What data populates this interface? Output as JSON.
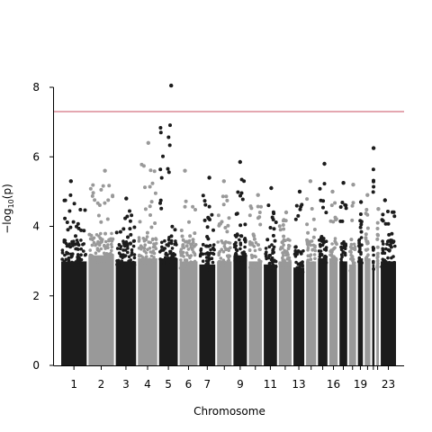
{
  "chart_data": {
    "type": "scatter",
    "subtype": "manhattan",
    "xlabel": "Chromosome",
    "ylabel": "−log",
    "ylabel_sub": "10",
    "ylabel_arg": "(p)",
    "ylim": [
      0,
      8.2
    ],
    "yticks": [
      0,
      2,
      4,
      6,
      8
    ],
    "threshold": {
      "value": 7.3,
      "color": "#c94f62"
    },
    "colors": {
      "dark": "#1c1c1c",
      "light": "#999999"
    },
    "grid": false,
    "chromosomes": [
      {
        "id": 1,
        "label": "1",
        "width": 8.0,
        "base_max": 3.4,
        "peak": 5.3
      },
      {
        "id": 2,
        "label": "2",
        "width": 8.0,
        "base_max": 3.6,
        "peak": 5.6
      },
      {
        "id": 3,
        "label": "3",
        "width": 6.5,
        "base_max": 3.4,
        "peak": 4.8
      },
      {
        "id": 4,
        "label": "4",
        "width": 6.2,
        "base_max": 3.5,
        "peak": 6.4
      },
      {
        "id": 5,
        "label": "5",
        "width": 6.0,
        "base_max": 3.5,
        "peak": 8.05
      },
      {
        "id": 6,
        "label": "6",
        "width": 5.8,
        "base_max": 3.4,
        "peak": 5.6
      },
      {
        "id": 7,
        "label": "7",
        "width": 5.2,
        "base_max": 3.3,
        "peak": 5.4
      },
      {
        "id": 8,
        "label": "",
        "width": 4.8,
        "base_max": 3.4,
        "peak": 5.3
      },
      {
        "id": 9,
        "label": "9",
        "width": 4.5,
        "base_max": 3.6,
        "peak": 5.85
      },
      {
        "id": 10,
        "label": "",
        "width": 4.4,
        "base_max": 3.4,
        "peak": 4.9
      },
      {
        "id": 11,
        "label": "11",
        "width": 4.4,
        "base_max": 3.3,
        "peak": 5.1
      },
      {
        "id": 12,
        "label": "",
        "width": 4.3,
        "base_max": 3.4,
        "peak": 4.4
      },
      {
        "id": 13,
        "label": "13",
        "width": 3.7,
        "base_max": 3.2,
        "peak": 5.0
      },
      {
        "id": 14,
        "label": "",
        "width": 3.5,
        "base_max": 3.4,
        "peak": 5.3
      },
      {
        "id": 15,
        "label": "",
        "width": 3.3,
        "base_max": 3.5,
        "peak": 5.8
      },
      {
        "id": 16,
        "label": "16",
        "width": 3.0,
        "base_max": 3.5,
        "peak": 5.0
      },
      {
        "id": 17,
        "label": "",
        "width": 2.8,
        "base_max": 3.4,
        "peak": 5.25
      },
      {
        "id": 18,
        "label": "",
        "width": 2.6,
        "base_max": 3.3,
        "peak": 5.2
      },
      {
        "id": 19,
        "label": "19",
        "width": 2.0,
        "base_max": 3.5,
        "peak": 4.7
      },
      {
        "id": 20,
        "label": "",
        "width": 2.2,
        "base_max": 3.5,
        "peak": 4.9
      },
      {
        "id": 21,
        "label": "",
        "width": 1.2,
        "base_max": 3.3,
        "peak": 6.25
      },
      {
        "id": 22,
        "label": "",
        "width": 1.3,
        "base_max": 3.4,
        "peak": 4.5
      },
      {
        "id": 23,
        "label": "23",
        "width": 5.0,
        "base_max": 3.4,
        "peak": 4.75
      }
    ]
  }
}
